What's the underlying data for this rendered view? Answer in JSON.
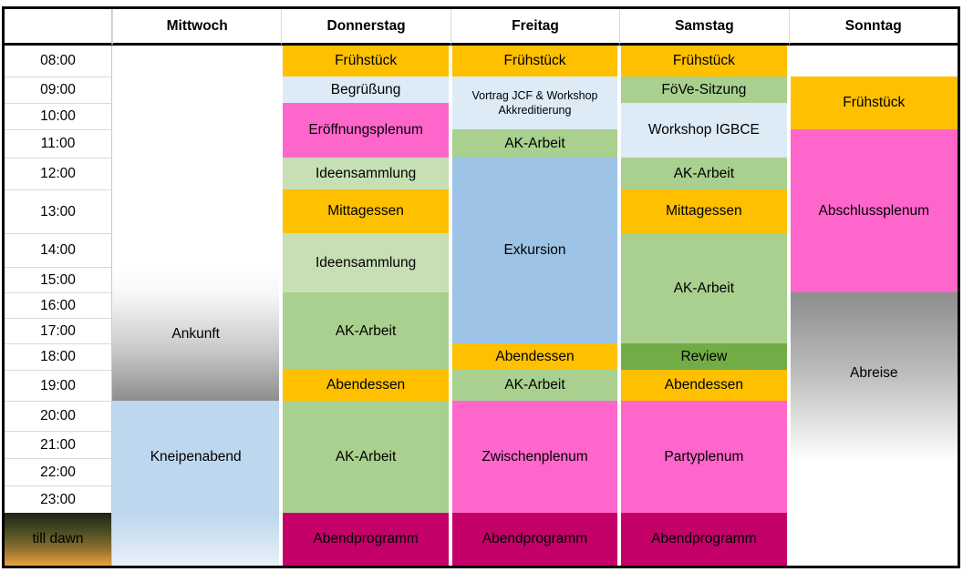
{
  "colors": {
    "orange": "#FFC000",
    "pink": "#FF66CC",
    "magenta": "#C40069",
    "green": "#A9D08E",
    "light_green": "#C6E0B4",
    "dark_green": "#70AD47",
    "blue": "#9DC3E6",
    "light_blue": "#DDEBF7",
    "pale_blue": "#BDD7EE",
    "gradient_gray": "#8D8D8D",
    "night_top": "#1D2414",
    "dawn_orange": "#E8A23D",
    "pale_blue_fade_end": "#E9F0F8",
    "grid_line": "#D9D9D9",
    "time_rule": "#C9C9C9",
    "border": "#000000",
    "background": "#FFFFFF",
    "text": "#000000"
  },
  "table": {
    "time_column": {
      "header": "",
      "slots": [
        "08:00",
        "09:00",
        "10:00",
        "11:00",
        "12:00",
        "13:00",
        "14:00",
        "15:00",
        "16:00",
        "17:00",
        "18:00",
        "19:00",
        "20:00",
        "21:00",
        "22:00",
        "23:00",
        "till dawn"
      ]
    },
    "days": [
      {
        "label": "Mittwoch",
        "events": [
          {
            "label": "Ankunft",
            "row": 7,
            "span": 5,
            "fill": "white_to_gray"
          },
          {
            "label": "Kneipenabend",
            "row": 12,
            "span": 4,
            "fill": "pale_blue"
          },
          {
            "label": "",
            "row": 16,
            "span": 1,
            "fill": "pale_blue_fade"
          }
        ]
      },
      {
        "label": "Donnerstag",
        "events": [
          {
            "label": "Frühstück",
            "row": 0,
            "span": 1,
            "fill": "orange"
          },
          {
            "label": "Begrüßung",
            "row": 1,
            "span": 1,
            "fill": "light_blue"
          },
          {
            "label": "Eröffnungsplenum",
            "row": 2,
            "span": 2,
            "fill": "pink"
          },
          {
            "label": "Ideensammlung",
            "row": 4,
            "span": 1,
            "fill": "light_green"
          },
          {
            "label": "Mittagessen",
            "row": 5,
            "span": 1,
            "fill": "orange"
          },
          {
            "label": "Ideensammlung",
            "row": 6,
            "span": 2,
            "fill": "light_green"
          },
          {
            "label": "AK-Arbeit",
            "row": 8,
            "span": 3,
            "fill": "green"
          },
          {
            "label": "Abendessen",
            "row": 11,
            "span": 1,
            "fill": "orange"
          },
          {
            "label": "AK-Arbeit",
            "row": 12,
            "span": 4,
            "fill": "green"
          },
          {
            "label": "Abendprogramm",
            "row": 16,
            "span": 1,
            "fill": "magenta"
          }
        ]
      },
      {
        "label": "Freitag",
        "events": [
          {
            "label": "Frühstück",
            "row": 0,
            "span": 1,
            "fill": "orange"
          },
          {
            "label": "Vortrag JCF & Workshop Akkreditierung",
            "row": 1,
            "span": 2,
            "fill": "light_blue",
            "small_text": true
          },
          {
            "label": "AK-Arbeit",
            "row": 3,
            "span": 1,
            "fill": "green"
          },
          {
            "label": "Exkursion",
            "row": 4,
            "span": 6,
            "fill": "blue"
          },
          {
            "label": "Abendessen",
            "row": 10,
            "span": 1,
            "fill": "orange"
          },
          {
            "label": "AK-Arbeit",
            "row": 11,
            "span": 1,
            "fill": "green"
          },
          {
            "label": "Zwischenplenum",
            "row": 12,
            "span": 4,
            "fill": "pink"
          },
          {
            "label": "Abendprogramm",
            "row": 16,
            "span": 1,
            "fill": "magenta"
          }
        ]
      },
      {
        "label": "Samstag",
        "events": [
          {
            "label": "Frühstück",
            "row": 0,
            "span": 1,
            "fill": "orange"
          },
          {
            "label": "FöVe-Sitzung",
            "row": 1,
            "span": 1,
            "fill": "green"
          },
          {
            "label": "Workshop IGBCE",
            "row": 2,
            "span": 2,
            "fill": "light_blue"
          },
          {
            "label": "AK-Arbeit",
            "row": 4,
            "span": 1,
            "fill": "green"
          },
          {
            "label": "Mittagessen",
            "row": 5,
            "span": 1,
            "fill": "orange"
          },
          {
            "label": "AK-Arbeit",
            "row": 6,
            "span": 4,
            "fill": "green"
          },
          {
            "label": "Review",
            "row": 10,
            "span": 1,
            "fill": "dark_green"
          },
          {
            "label": "Abendessen",
            "row": 11,
            "span": 1,
            "fill": "orange"
          },
          {
            "label": "Partyplenum",
            "row": 12,
            "span": 4,
            "fill": "pink"
          },
          {
            "label": "Abendprogramm",
            "row": 16,
            "span": 1,
            "fill": "magenta"
          }
        ]
      },
      {
        "label": "Sonntag",
        "events": [
          {
            "label": "Frühstück",
            "row": 1,
            "span": 2,
            "fill": "orange"
          },
          {
            "label": "Abschlussplenum",
            "row": 3,
            "span": 5,
            "fill": "pink"
          },
          {
            "label": "Abreise",
            "row": 8,
            "span": 9,
            "fill": "gray_to_white",
            "offset_top": true
          }
        ]
      }
    ]
  }
}
